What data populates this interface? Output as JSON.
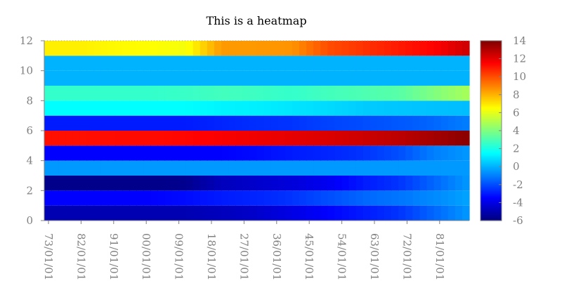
{
  "chart_data": {
    "type": "heatmap",
    "title": "This is a heatmap",
    "xlabel": "",
    "ylabel": "",
    "ylim": [
      0,
      12
    ],
    "yticks": [
      0,
      2,
      4,
      6,
      8,
      10,
      12
    ],
    "xticks": [
      "73/01/01",
      "82/01/01",
      "91/01/01",
      "00/01/01",
      "09/01/01",
      "18/01/01",
      "27/01/01",
      "36/01/01",
      "45/01/01",
      "54/01/01",
      "63/01/01",
      "72/01/01",
      "81/01/01"
    ],
    "colorbar": {
      "min": -6,
      "max": 14,
      "ticks": [
        -6,
        -4,
        -2,
        0,
        2,
        4,
        6,
        8,
        10,
        12,
        14
      ],
      "colormap": "jet"
    },
    "columns": 13,
    "rows": [
      {
        "y": 0.5,
        "values": [
          -5.0,
          -5.0,
          -5.0,
          -5.0,
          -5.0,
          -4.8,
          -4.5,
          -4.0,
          -3.5,
          -3.0,
          -2.5,
          -1.5,
          -0.5
        ]
      },
      {
        "y": 1.5,
        "values": [
          -3.5,
          -3.5,
          -3.5,
          -3.5,
          -3.3,
          -3.0,
          -2.8,
          -2.5,
          -2.0,
          -1.5,
          -1.2,
          -0.8,
          -0.3
        ]
      },
      {
        "y": 2.5,
        "values": [
          -5.8,
          -5.8,
          -5.8,
          -5.8,
          -5.7,
          -4.8,
          -4.5,
          -4.2,
          -3.8,
          -3.0,
          -2.5,
          -1.5,
          -0.5
        ]
      },
      {
        "y": 3.5,
        "values": [
          -0.5,
          -0.5,
          -0.5,
          -0.5,
          -0.5,
          -0.5,
          -0.5,
          -0.5,
          -0.5,
          -0.5,
          -0.5,
          -0.5,
          -0.5
        ]
      },
      {
        "y": 4.5,
        "values": [
          -3.5,
          -3.5,
          -3.5,
          -3.5,
          -3.5,
          -3.5,
          -3.3,
          -3.0,
          -2.8,
          -2.5,
          -2.0,
          -1.0,
          -0.5
        ]
      },
      {
        "y": 5.5,
        "values": [
          11.2,
          11.2,
          11.3,
          11.3,
          11.4,
          11.6,
          11.8,
          12.0,
          12.2,
          12.5,
          12.8,
          13.3,
          13.8
        ]
      },
      {
        "y": 6.5,
        "values": [
          -3.0,
          -3.0,
          -3.0,
          -3.0,
          -3.0,
          -2.8,
          -2.6,
          -2.5,
          -2.2,
          -2.0,
          -1.8,
          -1.5,
          -1.0
        ]
      },
      {
        "y": 7.5,
        "values": [
          1.5,
          1.5,
          1.5,
          1.5,
          1.5,
          1.3,
          1.2,
          1.0,
          0.8,
          0.5,
          0.4,
          0.3,
          0.2
        ]
      },
      {
        "y": 8.5,
        "values": [
          2.5,
          2.5,
          2.5,
          2.5,
          2.6,
          2.8,
          2.7,
          2.5,
          2.8,
          3.0,
          3.2,
          4.0,
          4.8
        ]
      },
      {
        "y": 9.5,
        "values": [
          0.0,
          0.0,
          0.0,
          0.0,
          0.0,
          0.0,
          0.0,
          0.0,
          0.0,
          0.0,
          0.0,
          0.0,
          0.0
        ]
      },
      {
        "y": 10.5,
        "values": [
          0.0,
          0.0,
          0.0,
          0.0,
          0.0,
          0.0,
          0.0,
          0.0,
          0.0,
          0.0,
          0.0,
          0.0,
          0.0
        ]
      },
      {
        "y": 11.5,
        "values": [
          6.8,
          6.8,
          6.6,
          6.5,
          6.3,
          8.5,
          8.5,
          8.6,
          10.0,
          10.5,
          11.0,
          11.5,
          12.5
        ]
      }
    ]
  }
}
